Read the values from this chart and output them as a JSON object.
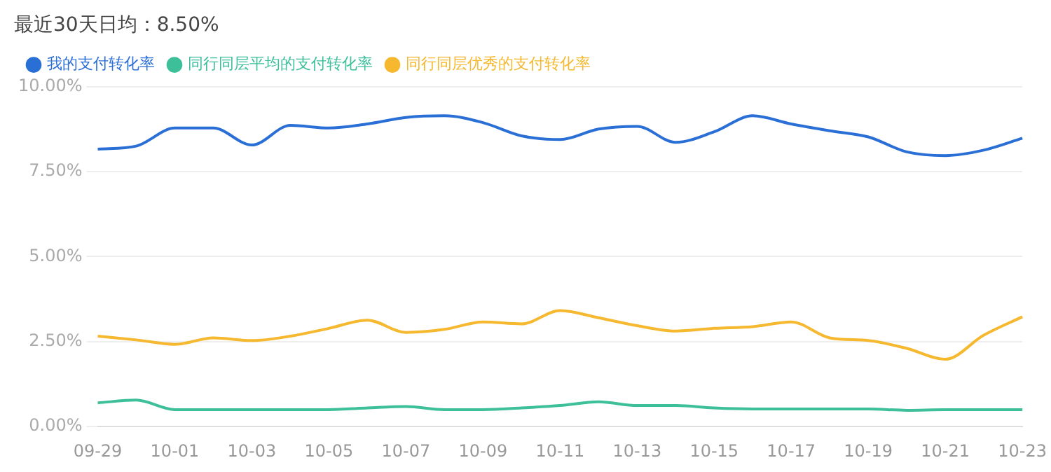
{
  "chart_data": {
    "type": "line",
    "title": "最近30天日均：8.50%",
    "categories": [
      "09-29",
      null,
      "10-01",
      null,
      "10-03",
      null,
      "10-05",
      null,
      "10-07",
      null,
      "10-09",
      null,
      "10-11",
      null,
      "10-13",
      null,
      "10-15",
      null,
      "10-17",
      null,
      "10-19",
      null,
      "10-21",
      null,
      "10-23"
    ],
    "series": [
      {
        "name": "我的支付转化率",
        "color": "#2a6fd6",
        "values": [
          8.16,
          8.25,
          8.78,
          8.78,
          8.28,
          8.86,
          8.78,
          8.9,
          9.09,
          9.14,
          8.94,
          8.55,
          8.44,
          8.75,
          8.83,
          8.36,
          8.67,
          9.14,
          8.9,
          8.7,
          8.52,
          8.08,
          7.97,
          8.13,
          8.48
        ]
      },
      {
        "name": "同行同层平均的支付转化率",
        "color": "#3dbf9a",
        "values": [
          0.7,
          0.78,
          0.5,
          0.5,
          0.5,
          0.5,
          0.5,
          0.55,
          0.59,
          0.5,
          0.5,
          0.55,
          0.62,
          0.73,
          0.62,
          0.62,
          0.55,
          0.52,
          0.52,
          0.52,
          0.52,
          0.48,
          0.5,
          0.5,
          0.5
        ]
      },
      {
        "name": "同行同层优秀的支付转化率",
        "color": "#f5b82e",
        "values": [
          2.66,
          2.55,
          2.42,
          2.61,
          2.53,
          2.66,
          2.89,
          3.13,
          2.77,
          2.86,
          3.08,
          3.02,
          3.41,
          3.2,
          2.97,
          2.81,
          2.89,
          2.94,
          3.08,
          2.61,
          2.53,
          2.3,
          1.98,
          2.69,
          3.23
        ]
      }
    ],
    "ylim": [
      0,
      10
    ],
    "yticks": [
      {
        "value": 0,
        "label": "0.00%"
      },
      {
        "value": 2.5,
        "label": "2.50%"
      },
      {
        "value": 5,
        "label": "5.00%"
      },
      {
        "value": 7.5,
        "label": "7.50%"
      },
      {
        "value": 10,
        "label": "10.00%"
      }
    ],
    "grid": "y",
    "legend": "top left",
    "marker": "none",
    "line_style": "solid"
  }
}
